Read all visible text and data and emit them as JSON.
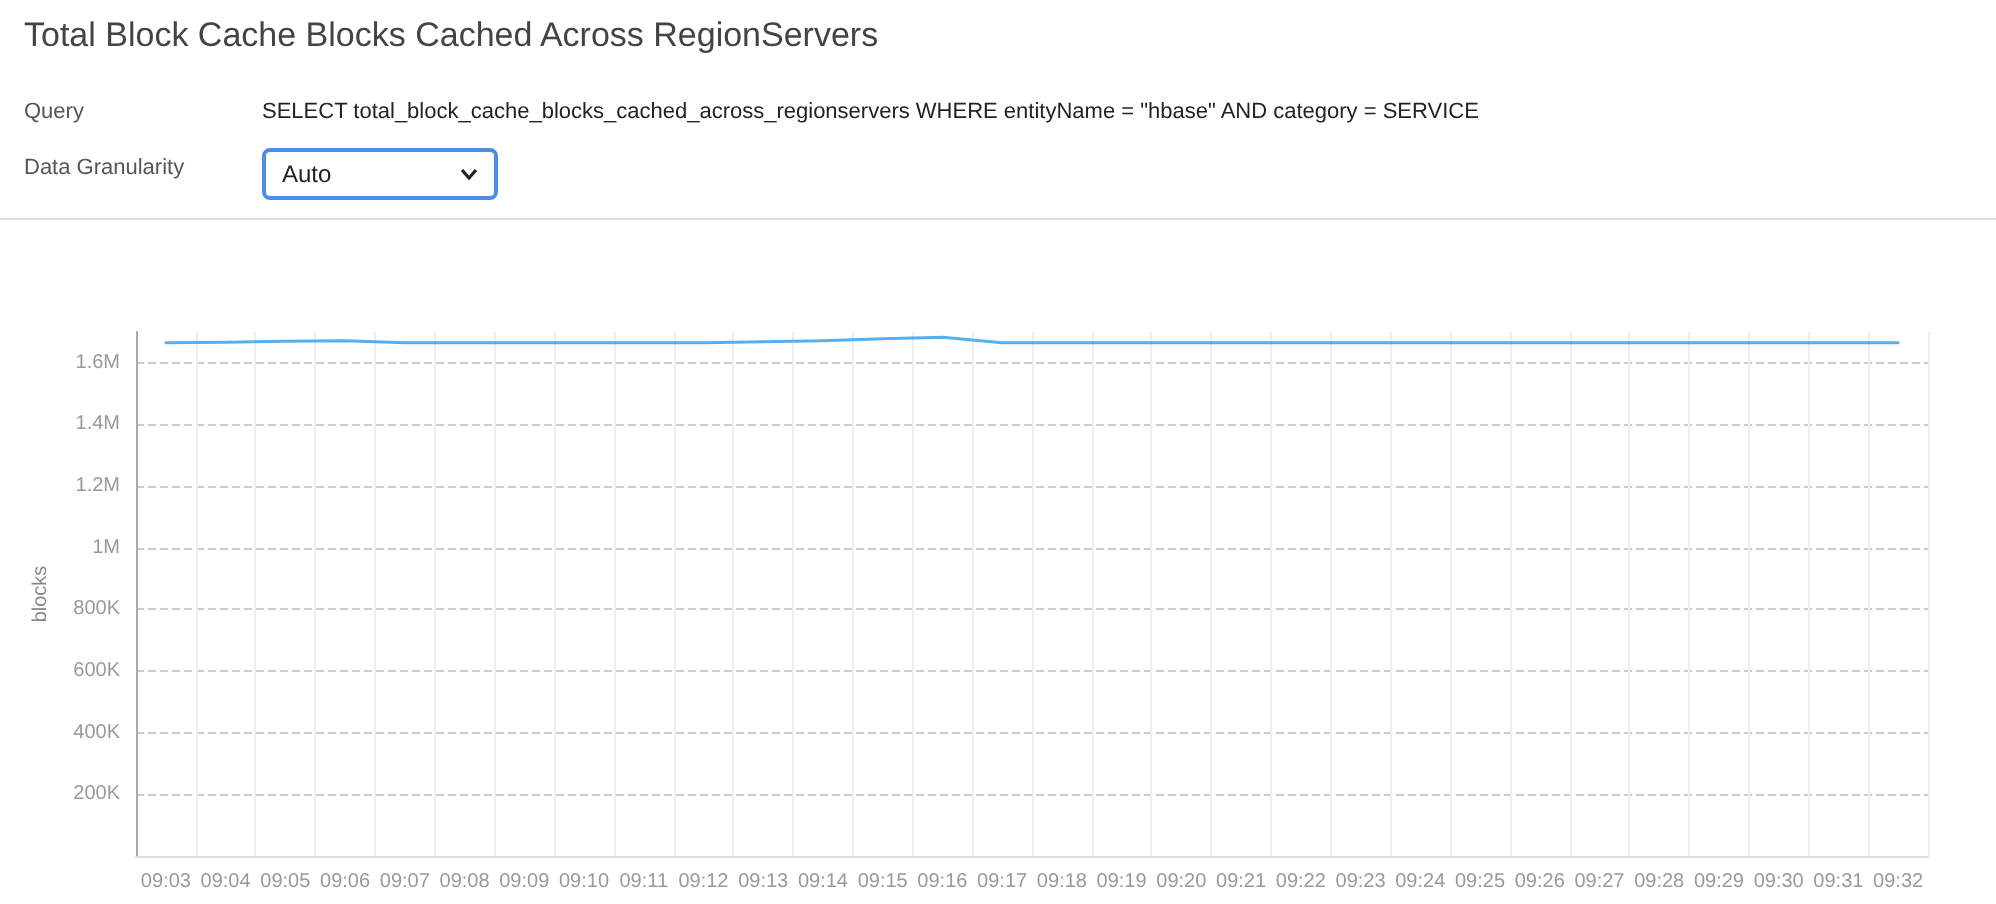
{
  "chart_data": {
    "type": "line",
    "title": "Total Block Cache Blocks Cached Across RegionServers",
    "annotations": [
      "Query",
      "SELECT total_block_cache_blocks_cached_across_regionservers WHERE entityName = \"hbase\" AND category = SERVICE",
      "Data Granularity",
      "Auto"
    ],
    "ylabel": "blocks",
    "categories": [
      "09:03",
      "09:04",
      "09:05",
      "09:06",
      "09:07",
      "09:08",
      "09:09",
      "09:10",
      "09:11",
      "09:12",
      "09:13",
      "09:14",
      "09:15",
      "09:16",
      "09:17",
      "09:18",
      "09:19",
      "09:20",
      "09:21",
      "09:22",
      "09:23",
      "09:24",
      "09:25",
      "09:26",
      "09:27",
      "09:28",
      "09:29",
      "09:30",
      "09:31",
      "09:32"
    ],
    "series": [
      {
        "color": "#55b0f2",
        "values": [
          1665000,
          1667000,
          1670000,
          1672000,
          1665000,
          1665000,
          1665000,
          1665000,
          1665000,
          1665000,
          1668000,
          1672000,
          1678000,
          1683000,
          1665000,
          1665000,
          1665000,
          1665000,
          1665000,
          1665000,
          1665000,
          1665000,
          1665000,
          1665000,
          1665000,
          1665000,
          1665000,
          1665000,
          1665000,
          1665000
        ]
      }
    ],
    "ylim": [
      0,
      1700000
    ],
    "yticks": [
      {
        "value": 200000,
        "label": "200K"
      },
      {
        "value": 400000,
        "label": "400K"
      },
      {
        "value": 600000,
        "label": "600K"
      },
      {
        "value": 800000,
        "label": "800K"
      },
      {
        "value": 1000000,
        "label": "1M"
      },
      {
        "value": 1200000,
        "label": "1.2M"
      },
      {
        "value": 1400000,
        "label": "1.4M"
      },
      {
        "value": 1600000,
        "label": "1.6M"
      }
    ],
    "grid": true,
    "marker": "none",
    "line_style": "solid"
  }
}
